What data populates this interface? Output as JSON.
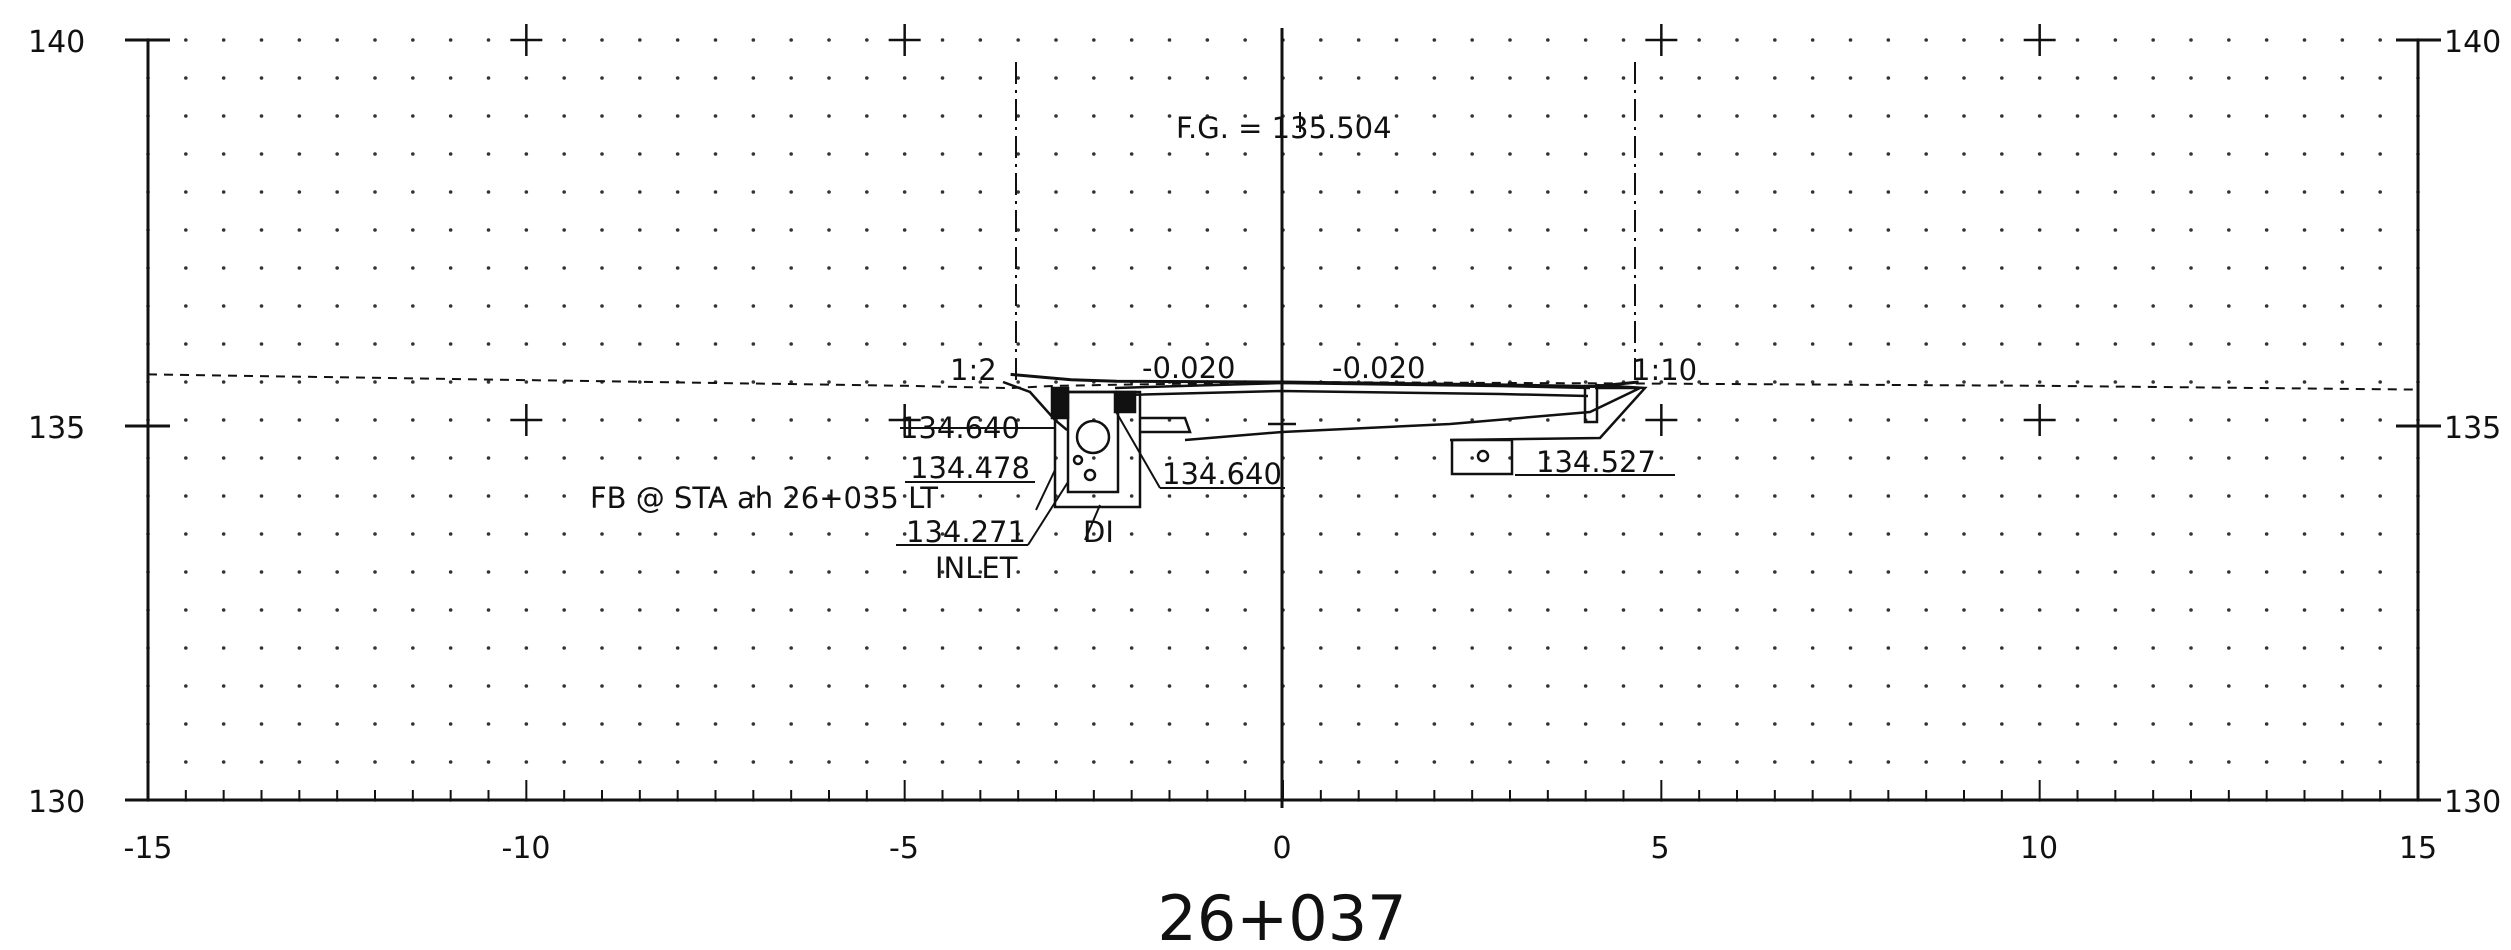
{
  "drawing": {
    "station": "26+037",
    "x_axis": {
      "range": [
        -15,
        15
      ],
      "major_step": 5,
      "tick_labels": [
        "-15",
        "-10",
        "-5",
        "0",
        "5",
        "10",
        "15"
      ]
    },
    "y_axis": {
      "range": [
        130,
        140
      ],
      "major_step": 5,
      "tick_labels": [
        "130",
        "135",
        "140"
      ]
    },
    "grid": "dotted",
    "annotations": {
      "finished_grade": "F.G. = 135.504",
      "left_slope": "1:2",
      "right_slope": "1:10",
      "cross_slope_left": "-0.020",
      "cross_slope_right": "-0.020",
      "elev_a": "134.640",
      "elev_b": "134.478",
      "elev_c": "134.640",
      "elev_d": "134.527",
      "elev_e": "134.271",
      "inlet_label": "INLET",
      "di_label": "DI",
      "fb_note": "FB @ STA ah 26+035 LT"
    },
    "colors": {
      "line": "#111111",
      "background": "#ffffff"
    }
  },
  "chart_data": {
    "type": "line",
    "title": "26+037",
    "xlabel": "",
    "ylabel": "",
    "xlim": [
      -15,
      15
    ],
    "ylim": [
      130,
      140
    ],
    "grid": true,
    "series": [
      {
        "style": "dashed",
        "x": [
          -15,
          -5,
          -3.6,
          -3,
          0,
          4.7,
          10,
          15
        ],
        "y": [
          135.6,
          135.45,
          135.42,
          135.45,
          135.5,
          135.48,
          135.45,
          135.4
        ]
      },
      {
        "style": "solid",
        "x": [
          -3.6,
          -2.8,
          -2.2,
          0,
          3.0,
          4.1,
          4.7
        ],
        "y": [
          135.6,
          135.53,
          135.51,
          135.5,
          135.46,
          135.44,
          135.5
        ]
      }
    ]
  }
}
